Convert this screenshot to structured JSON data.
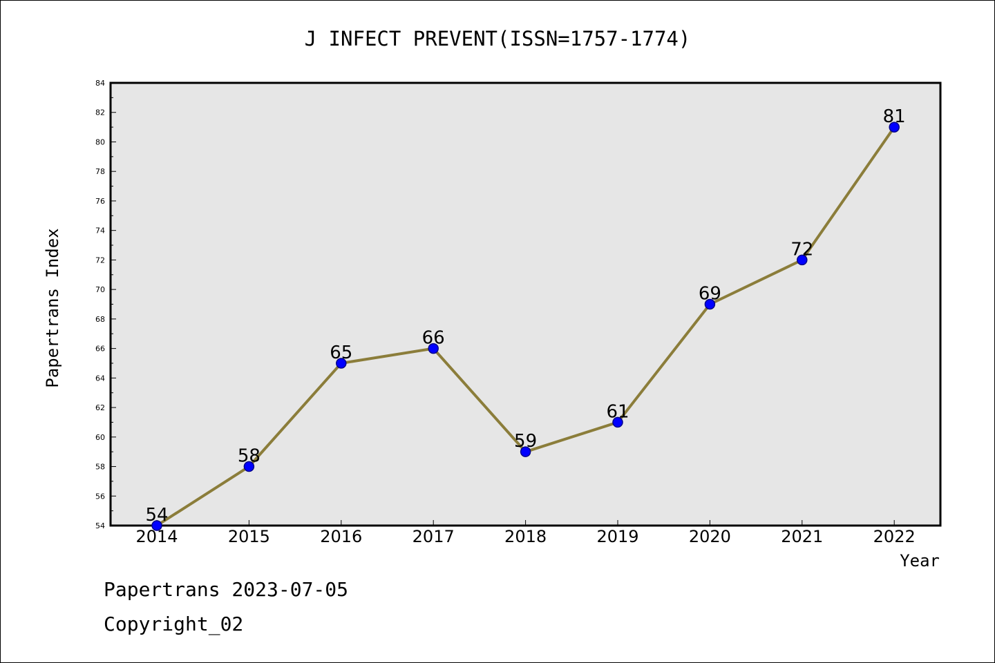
{
  "footer": {
    "line1": "Papertrans 2023-07-05",
    "line2": "Copyright_02"
  },
  "colors": {
    "plot_background": "#e6e6e6",
    "line": "#8b7d3a",
    "marker_fill": "#0000ff",
    "marker_edge": "#00008b"
  },
  "chart_data": {
    "type": "line",
    "title": "J INFECT PREVENT(ISSN=1757-1774)",
    "xlabel": "Year",
    "ylabel": "Papertrans Index",
    "categories": [
      "2014",
      "2015",
      "2016",
      "2017",
      "2018",
      "2019",
      "2020",
      "2021",
      "2022"
    ],
    "series": [
      {
        "values": [
          54,
          58,
          65,
          66,
          59,
          61,
          69,
          72,
          81
        ]
      }
    ],
    "ylim": [
      54,
      84
    ],
    "yticks": [
      54,
      56,
      58,
      60,
      62,
      64,
      66,
      68,
      70,
      72,
      74,
      76,
      78,
      80,
      82,
      84
    ],
    "data_labels": true,
    "grid": false,
    "legend": "none"
  }
}
